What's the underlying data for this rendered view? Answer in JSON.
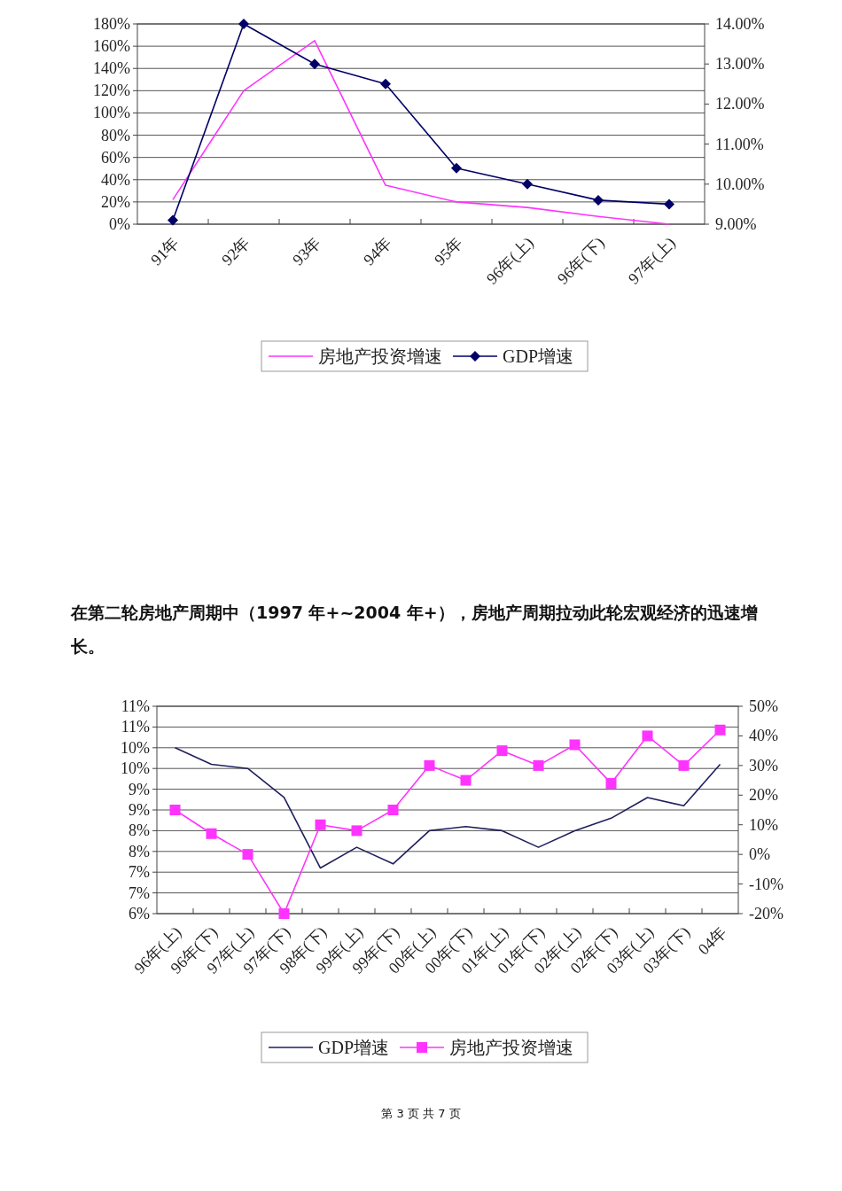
{
  "chart_data": [
    {
      "type": "line",
      "categories": [
        "91年",
        "92年",
        "93年",
        "94年",
        "95年",
        "96年(上)",
        "96年(下)",
        "97年(上)"
      ],
      "series": [
        {
          "name": "房地产投资增速",
          "color": "#ff33ff",
          "values": [
            22,
            120,
            165,
            35,
            20,
            15,
            7,
            0
          ],
          "marker": "none"
        },
        {
          "name": "GDP增速",
          "color": "#000066",
          "values": [
            9.1,
            14.0,
            13.0,
            12.5,
            10.4,
            10.0,
            9.6,
            9.5
          ],
          "axis": "y2",
          "marker": "diamond"
        }
      ],
      "ylim": [
        0,
        180
      ],
      "yticks": [
        {
          "value": 0,
          "label": "0%"
        },
        {
          "value": 20,
          "label": "20%"
        },
        {
          "value": 40,
          "label": "40%"
        },
        {
          "value": 60,
          "label": "60%"
        },
        {
          "value": 80,
          "label": "80%"
        },
        {
          "value": 100,
          "label": "100%"
        },
        {
          "value": 120,
          "label": "120%"
        },
        {
          "value": 140,
          "label": "140%"
        },
        {
          "value": 160,
          "label": "160%"
        },
        {
          "value": 180,
          "label": "180%"
        }
      ],
      "y2lim": [
        9,
        14
      ],
      "y2ticks": [
        {
          "value": 9,
          "label": "9.00%"
        },
        {
          "value": 10,
          "label": "10.00%"
        },
        {
          "value": 11,
          "label": "11.00%"
        },
        {
          "value": 12,
          "label": "12.00%"
        },
        {
          "value": 13,
          "label": "13.00%"
        },
        {
          "value": 14,
          "label": "14.00%"
        }
      ],
      "grid": "y",
      "legend": "bottom"
    },
    {
      "type": "line",
      "title": "在第二轮房地产周期中（1997 年+~2004 年+），房地产周期拉动此轮宏观经济的迅速增长。",
      "categories": [
        "96年(上)",
        "96年(下)",
        "97年(上)",
        "97年(下)",
        "98年(下)",
        "99年(上)",
        "99年(下)",
        "00年(上)",
        "00年(下)",
        "01年(上)",
        "01年(下)",
        "02年(上)",
        "02年(下)",
        "03年(上)",
        "03年(下)",
        "04年"
      ],
      "series": [
        {
          "name": "GDP增速",
          "color": "#1f1f5c",
          "values": [
            10.0,
            9.6,
            9.5,
            8.8,
            7.1,
            7.6,
            7.2,
            8.0,
            8.1,
            8.0,
            7.6,
            8.0,
            8.3,
            8.8,
            8.6,
            9.6
          ],
          "marker": "none"
        },
        {
          "name": "房地产投资增速",
          "color": "#ff33ff",
          "values": [
            15,
            7,
            0,
            -20,
            10,
            8,
            15,
            30,
            25,
            35,
            30,
            37,
            24,
            40,
            30,
            42
          ],
          "axis": "y2",
          "marker": "square"
        }
      ],
      "ylim": [
        6,
        11
      ],
      "yticks": [
        {
          "value": 6,
          "label": "6%"
        },
        {
          "value": 6.5,
          "label": "7%"
        },
        {
          "value": 7,
          "label": "7%"
        },
        {
          "value": 7.5,
          "label": "8%"
        },
        {
          "value": 8,
          "label": "8%"
        },
        {
          "value": 8.5,
          "label": "9%"
        },
        {
          "value": 9,
          "label": "9%"
        },
        {
          "value": 9.5,
          "label": "10%"
        },
        {
          "value": 10,
          "label": "10%"
        },
        {
          "value": 10.5,
          "label": "11%"
        },
        {
          "value": 11,
          "label": "11%"
        }
      ],
      "y2lim": [
        -20,
        50
      ],
      "y2ticks": [
        {
          "value": -20,
          "label": "-20%"
        },
        {
          "value": -10,
          "label": "-10%"
        },
        {
          "value": 0,
          "label": "0%"
        },
        {
          "value": 10,
          "label": "10%"
        },
        {
          "value": 20,
          "label": "20%"
        },
        {
          "value": 30,
          "label": "30%"
        },
        {
          "value": 40,
          "label": "40%"
        },
        {
          "value": 50,
          "label": "50%"
        }
      ],
      "grid": "y",
      "legend": "bottom",
      "annotations": [
        "第 3 页 共 7 页"
      ]
    }
  ]
}
